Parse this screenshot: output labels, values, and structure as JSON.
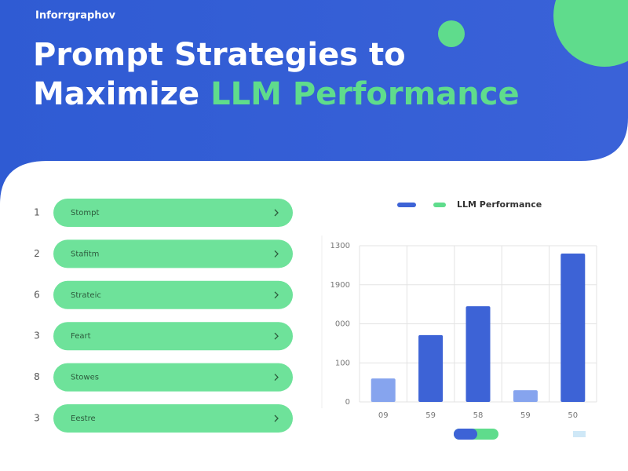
{
  "header": {
    "brand": "Inforrgraphov",
    "title_line1": "Prompt Strategies to",
    "title_line2": "Maximize",
    "title_highlight": "LLM Performance"
  },
  "list": [
    {
      "number": "1",
      "label": "Stompt"
    },
    {
      "number": "2",
      "label": "Stafitm"
    },
    {
      "number": "6",
      "label": "Strateic"
    },
    {
      "number": "3",
      "label": "Feart"
    },
    {
      "number": "8",
      "label": "Stowes"
    },
    {
      "number": "3",
      "label": "Eestre"
    }
  ],
  "chart_data": {
    "type": "bar",
    "categories": [
      "09",
      "59",
      "58",
      "59",
      "50"
    ],
    "series": [
      {
        "name": "LLM Performance",
        "color": "#3d63d6",
        "values": [
          60,
          171,
          245,
          30,
          380
        ]
      }
    ],
    "colors": [
      "#86a4ee",
      "#3d63d6",
      "#3d63d6",
      "#86a4ee",
      "#3d63d6"
    ],
    "ylim": [
      0,
      400
    ],
    "yticks": [
      0,
      100,
      {
        "value": 200,
        "label": "000"
      },
      {
        "value": 300,
        "label": "1900"
      },
      {
        "value": 400,
        "label": "1300"
      }
    ],
    "grid": true
  }
}
